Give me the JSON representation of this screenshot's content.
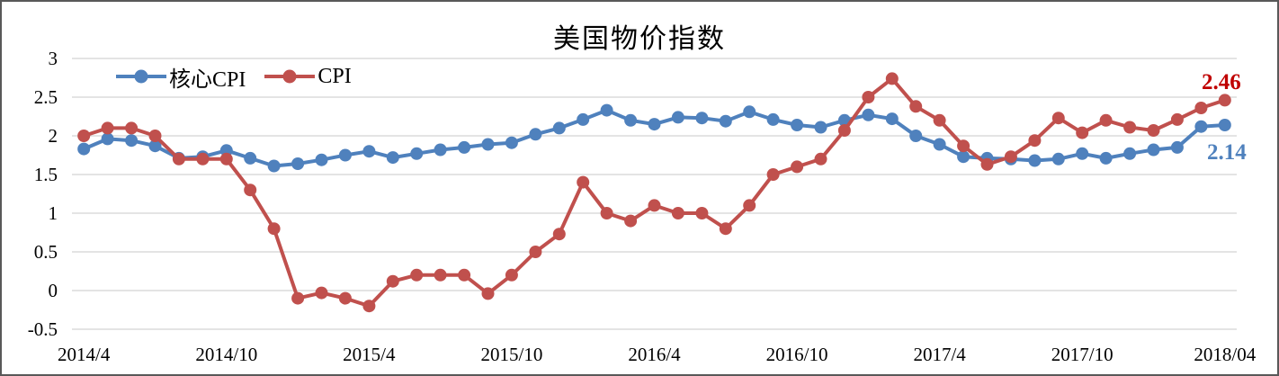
{
  "title": "美国物价指数",
  "chart_data": {
    "type": "line",
    "title": "美国物价指数",
    "grid": true,
    "legend_position": "top-left-inside",
    "ylim": [
      -0.5,
      3
    ],
    "y_ticks": [
      {
        "label": "3",
        "value": 3
      },
      {
        "label": "2.5",
        "value": 2.5
      },
      {
        "label": "2",
        "value": 2
      },
      {
        "label": "1.5",
        "value": 1.5
      },
      {
        "label": "1",
        "value": 1
      },
      {
        "label": "0.5",
        "value": 0.5
      },
      {
        "label": "0",
        "value": 0
      },
      {
        "label": "-0.5",
        "value": -0.5
      }
    ],
    "x_ticks": [
      {
        "label": "2014/4",
        "index": 0
      },
      {
        "label": "2014/10",
        "index": 6
      },
      {
        "label": "2015/4",
        "index": 12
      },
      {
        "label": "2015/10",
        "index": 18
      },
      {
        "label": "2016/4",
        "index": 24
      },
      {
        "label": "2016/10",
        "index": 30
      },
      {
        "label": "2017/4",
        "index": 36
      },
      {
        "label": "2017/10",
        "index": 42
      },
      {
        "label": "2018/04",
        "index": 48
      }
    ],
    "x_months": [
      "2014/04",
      "2014/05",
      "2014/06",
      "2014/07",
      "2014/08",
      "2014/09",
      "2014/10",
      "2014/11",
      "2014/12",
      "2015/01",
      "2015/02",
      "2015/03",
      "2015/04",
      "2015/05",
      "2015/06",
      "2015/07",
      "2015/08",
      "2015/09",
      "2015/10",
      "2015/11",
      "2015/12",
      "2016/01",
      "2016/02",
      "2016/03",
      "2016/04",
      "2016/05",
      "2016/06",
      "2016/07",
      "2016/08",
      "2016/09",
      "2016/10",
      "2016/11",
      "2016/12",
      "2017/01",
      "2017/02",
      "2017/03",
      "2017/04",
      "2017/05",
      "2017/06",
      "2017/07",
      "2017/08",
      "2017/09",
      "2017/10",
      "2017/11",
      "2017/12",
      "2018/01",
      "2018/02",
      "2018/03",
      "2018/04"
    ],
    "series": [
      {
        "name": "核心CPI",
        "color": "#4F81BD",
        "marker": "circle",
        "values": [
          1.83,
          1.96,
          1.94,
          1.87,
          1.71,
          1.73,
          1.81,
          1.71,
          1.61,
          1.64,
          1.69,
          1.75,
          1.8,
          1.72,
          1.77,
          1.82,
          1.85,
          1.89,
          1.91,
          2.02,
          2.1,
          2.21,
          2.33,
          2.2,
          2.15,
          2.24,
          2.23,
          2.19,
          2.31,
          2.21,
          2.14,
          2.11,
          2.2,
          2.27,
          2.22,
          2.0,
          1.89,
          1.73,
          1.71,
          1.7,
          1.68,
          1.7,
          1.77,
          1.71,
          1.77,
          1.82,
          1.85,
          2.12,
          2.14
        ]
      },
      {
        "name": "CPI",
        "color": "#C0504D",
        "marker": "circle",
        "values": [
          2.0,
          2.1,
          2.1,
          2.0,
          1.7,
          1.7,
          1.7,
          1.3,
          0.8,
          -0.1,
          -0.03,
          -0.1,
          -0.2,
          0.12,
          0.2,
          0.2,
          0.2,
          -0.04,
          0.2,
          0.5,
          0.73,
          1.4,
          1.0,
          0.9,
          1.1,
          1.0,
          1.0,
          0.8,
          1.1,
          1.5,
          1.6,
          1.7,
          2.07,
          2.5,
          2.74,
          2.38,
          2.2,
          1.87,
          1.63,
          1.73,
          1.94,
          2.23,
          2.04,
          2.2,
          2.11,
          2.07,
          2.21,
          2.36,
          2.46
        ]
      }
    ],
    "end_labels": [
      {
        "text": "2.46",
        "series": "CPI",
        "color": "#C00000"
      },
      {
        "text": "2.14",
        "series": "核心CPI",
        "color": "#4F81BD"
      }
    ],
    "gridline_color": "#D4D4D4"
  }
}
